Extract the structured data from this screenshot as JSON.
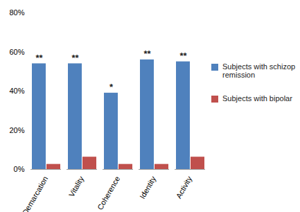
{
  "chart_data": {
    "type": "bar",
    "categories": [
      "Demarcation",
      "Vitality",
      "Coherence",
      "Identity",
      "Activity"
    ],
    "series": [
      {
        "name": "Subjects with schizop remission",
        "color": "#4f81bd",
        "values": [
          54,
          54,
          39,
          56,
          55
        ]
      },
      {
        "name": "Subjects with bipolar",
        "color": "#c0504d",
        "values": [
          2.6,
          6.3,
          2.6,
          2.6,
          6.3
        ]
      }
    ],
    "annotations": [
      "**",
      "**",
      "*",
      "**",
      "**"
    ],
    "ylim": [
      0,
      80
    ],
    "yticks": [
      {
        "value": 0,
        "label": "0%"
      },
      {
        "value": 20,
        "label": "20%"
      },
      {
        "value": 40,
        "label": "40%"
      },
      {
        "value": 60,
        "label": "60%"
      },
      {
        "value": 80,
        "label": "80%"
      }
    ],
    "grid": false,
    "legend": "right"
  }
}
